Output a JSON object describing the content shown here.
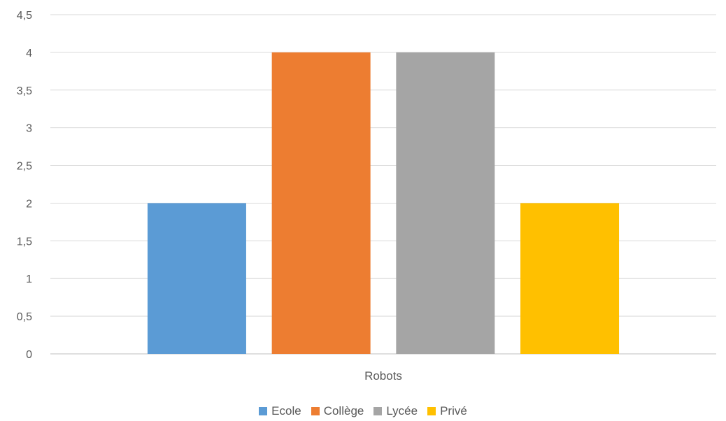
{
  "chart_data": {
    "type": "bar",
    "categories": [
      "Robots"
    ],
    "series": [
      {
        "name": "Ecole",
        "values": [
          2
        ],
        "color": "#5B9BD5"
      },
      {
        "name": "Collège",
        "values": [
          4
        ],
        "color": "#ED7D31"
      },
      {
        "name": "Lycée",
        "values": [
          4
        ],
        "color": "#A5A5A5"
      },
      {
        "name": "Privé",
        "values": [
          2
        ],
        "color": "#FFC000"
      }
    ],
    "yticks": [
      "0",
      "0,5",
      "1",
      "1,5",
      "2",
      "2,5",
      "3",
      "3,5",
      "4",
      "4,5"
    ],
    "ylim": [
      0,
      4.5
    ],
    "grid": true,
    "legend_position": "bottom",
    "title": "",
    "xlabel": "",
    "ylabel": ""
  }
}
